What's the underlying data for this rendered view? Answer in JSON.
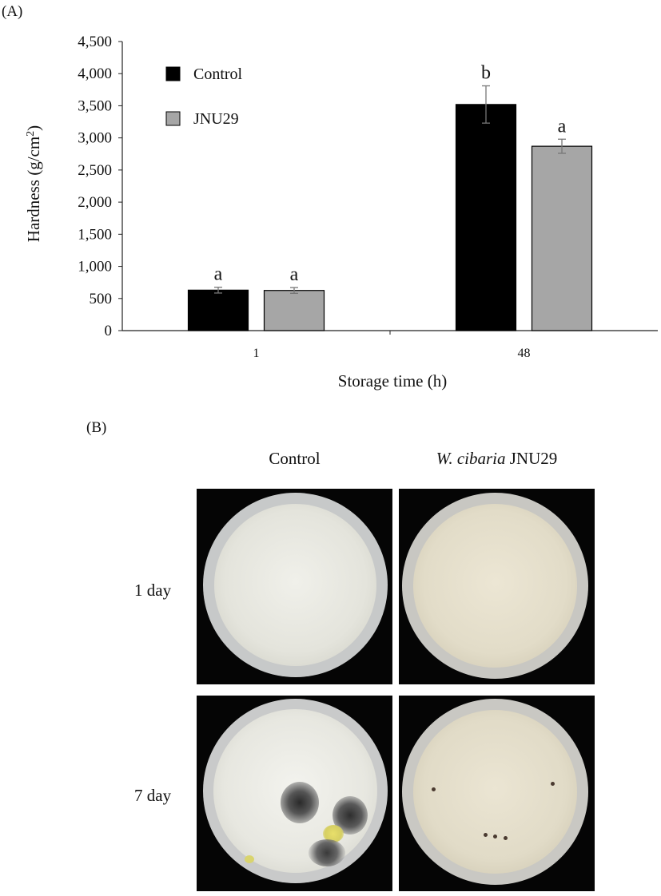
{
  "panel_a": {
    "label": "(A)"
  },
  "panel_b": {
    "label": "(B)"
  },
  "chart_data": {
    "type": "bar",
    "xlabel": "Storage time (h)",
    "ylabel": "Hardness (g/cm",
    "ylabel_superscript": "2",
    "ylabel_close": ")",
    "categories": [
      "1",
      "48"
    ],
    "ylim": [
      0,
      4500
    ],
    "yticks": [
      0,
      500,
      1000,
      1500,
      2000,
      2500,
      3000,
      3500,
      4000,
      4500
    ],
    "ytick_labels": [
      "0",
      "500",
      "1,000",
      "1,500",
      "2,000",
      "2,500",
      "3,000",
      "3,500",
      "4,000",
      "4,500"
    ],
    "legend_position": "top-left",
    "series": [
      {
        "name": "Control",
        "color": "#000000",
        "values": [
          630,
          3520
        ],
        "errors": [
          45,
          290
        ],
        "letters": [
          "a",
          "b"
        ]
      },
      {
        "name": "JNU29",
        "color": "#a6a6a6",
        "values": [
          625,
          2870
        ],
        "errors": [
          45,
          110
        ],
        "letters": [
          "a",
          "a"
        ]
      }
    ]
  },
  "photo_grid": {
    "columns": [
      {
        "label": "Control"
      },
      {
        "label_italic": "W. cibaria",
        "label_rest": " JNU29"
      }
    ],
    "rows": [
      {
        "label": "1 day"
      },
      {
        "label": "7 day"
      }
    ]
  }
}
